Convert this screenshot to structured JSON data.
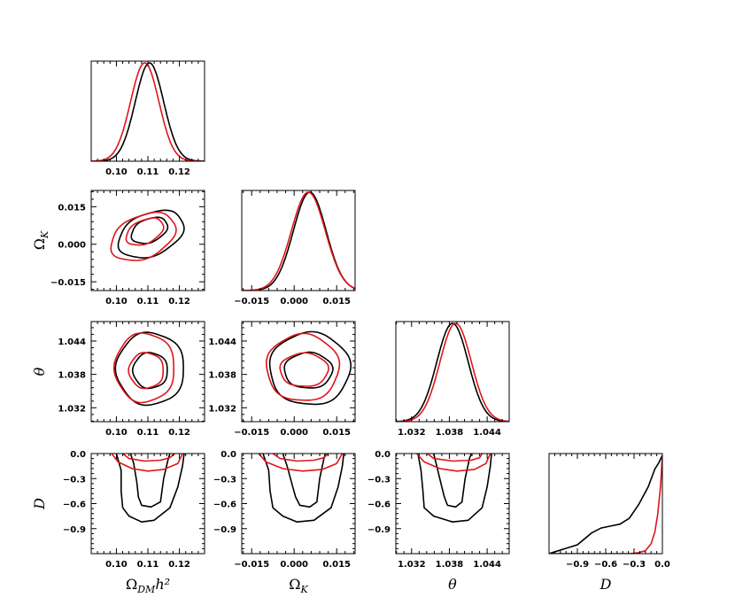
{
  "chart_data": {
    "type": "triangle-plot",
    "parameters": [
      {
        "key": "omdm",
        "label": "Ω_DMh²",
        "range": [
          0.092,
          0.128
        ],
        "ticks": [
          {
            "v": 0.1,
            "t": "0.10"
          },
          {
            "v": 0.11,
            "t": "0.11"
          },
          {
            "v": 0.12,
            "t": "0.12"
          }
        ]
      },
      {
        "key": "omk",
        "label": "Ω_K",
        "range": [
          -0.0185,
          0.0215
        ],
        "ticks": [
          {
            "v": -0.015,
            "t": "−0.015"
          },
          {
            "v": 0.0,
            "t": "0.000"
          },
          {
            "v": 0.015,
            "t": "0.015"
          }
        ]
      },
      {
        "key": "theta",
        "label": "θ",
        "range": [
          1.0295,
          1.0475
        ],
        "ticks": [
          {
            "v": 1.032,
            "t": "1.032"
          },
          {
            "v": 1.038,
            "t": "1.038"
          },
          {
            "v": 1.044,
            "t": "1.044"
          }
        ]
      },
      {
        "key": "D",
        "label": "D",
        "range": [
          -1.2,
          0.0
        ],
        "ticks": [
          {
            "v": -0.9,
            "t": "−0.9"
          },
          {
            "v": -0.6,
            "t": "−0.6"
          },
          {
            "v": -0.3,
            "t": "−0.3"
          },
          {
            "v": 0.0,
            "t": "0.0"
          }
        ]
      }
    ],
    "axis_labels": {
      "x": [
        "Ω",
        "Ω",
        "θ",
        "D"
      ],
      "x_sub": [
        "DM",
        "K",
        "",
        ""
      ],
      "x_suffix": [
        "h²",
        "",
        "",
        ""
      ],
      "y": [
        "Ω",
        "θ",
        "D"
      ],
      "y_sub": [
        "K",
        "",
        ""
      ]
    },
    "series": [
      {
        "name": "black",
        "color": "#000000"
      },
      {
        "name": "red",
        "color": "#e0141c"
      }
    ],
    "marginals": [
      {
        "param": "omdm",
        "black": {
          "mean": 0.1105,
          "sd": 0.0045
        },
        "red": {
          "mean": 0.109,
          "sd": 0.0045
        }
      },
      {
        "param": "omk",
        "black": {
          "mean": 0.0055,
          "sd": 0.0058
        },
        "red": {
          "mean": 0.005,
          "sd": 0.006
        }
      },
      {
        "param": "theta",
        "black": {
          "mean": 1.0385,
          "sd": 0.0025
        },
        "red": {
          "mean": 1.039,
          "sd": 0.0025
        }
      },
      {
        "param": "D",
        "black": [
          [
            -1.2,
            0.0
          ],
          [
            -0.9,
            0.09
          ],
          [
            -0.75,
            0.21
          ],
          [
            -0.65,
            0.26
          ],
          [
            -0.55,
            0.28
          ],
          [
            -0.45,
            0.3
          ],
          [
            -0.35,
            0.36
          ],
          [
            -0.25,
            0.5
          ],
          [
            -0.15,
            0.68
          ],
          [
            -0.08,
            0.86
          ],
          [
            -0.04,
            0.92
          ],
          [
            0.0,
            1.0
          ]
        ],
        "red": [
          [
            -1.2,
            0.0
          ],
          [
            -0.35,
            0.0
          ],
          [
            -0.25,
            0.01
          ],
          [
            -0.18,
            0.03
          ],
          [
            -0.12,
            0.1
          ],
          [
            -0.08,
            0.22
          ],
          [
            -0.05,
            0.4
          ],
          [
            -0.02,
            0.68
          ],
          [
            0.0,
            1.0
          ]
        ]
      }
    ],
    "contours": [
      {
        "x": "omdm",
        "y": "omk",
        "black": [
          {
            "cx": 0.1105,
            "cy": 0.0055,
            "rx": 0.0062,
            "ry": 0.0045,
            "rot": 30
          },
          {
            "cx": 0.111,
            "cy": 0.004,
            "rx": 0.0112,
            "ry": 0.0082,
            "rot": 30
          }
        ],
        "red": [
          {
            "cx": 0.109,
            "cy": 0.005,
            "rx": 0.0065,
            "ry": 0.0045,
            "rot": 32
          },
          {
            "cx": 0.1085,
            "cy": 0.003,
            "rx": 0.0112,
            "ry": 0.0082,
            "rot": 32
          }
        ]
      },
      {
        "x": "omdm",
        "y": "theta",
        "black": [
          {
            "cx": 0.1108,
            "cy": 1.0387,
            "rx": 0.0055,
            "ry": 0.0032,
            "rot": 0
          },
          {
            "cx": 0.1108,
            "cy": 1.039,
            "rx": 0.0108,
            "ry": 0.0065,
            "rot": 0
          }
        ],
        "red": [
          {
            "cx": 0.1095,
            "cy": 1.0387,
            "rx": 0.0055,
            "ry": 0.0032,
            "rot": 0
          },
          {
            "cx": 0.109,
            "cy": 1.0392,
            "rx": 0.0095,
            "ry": 0.0062,
            "rot": 0
          }
        ]
      },
      {
        "x": "omk",
        "y": "theta",
        "black": [
          {
            "cx": 0.005,
            "cy": 1.0387,
            "rx": 0.0085,
            "ry": 0.0032,
            "rot": 0
          },
          {
            "cx": 0.0055,
            "cy": 1.039,
            "rx": 0.0142,
            "ry": 0.0065,
            "rot": 0
          }
        ],
        "red": [
          {
            "cx": 0.0035,
            "cy": 1.0388,
            "rx": 0.0085,
            "ry": 0.003,
            "rot": 0
          },
          {
            "cx": 0.003,
            "cy": 1.0392,
            "rx": 0.0128,
            "ry": 0.006,
            "rot": 0
          }
        ]
      },
      {
        "x": "omdm",
        "y": "D",
        "black_inner": [
          [
            0.1045,
            0.0
          ],
          [
            0.1055,
            -0.12
          ],
          [
            0.1065,
            -0.35
          ],
          [
            0.107,
            -0.52
          ],
          [
            0.108,
            -0.62
          ],
          [
            0.111,
            -0.64
          ],
          [
            0.114,
            -0.58
          ],
          [
            0.115,
            -0.3
          ],
          [
            0.1165,
            -0.06
          ],
          [
            0.117,
            0.0
          ]
        ],
        "black_outer": [
          [
            0.1,
            0.0
          ],
          [
            0.1015,
            -0.2
          ],
          [
            0.1015,
            -0.45
          ],
          [
            0.102,
            -0.65
          ],
          [
            0.104,
            -0.75
          ],
          [
            0.108,
            -0.82
          ],
          [
            0.112,
            -0.8
          ],
          [
            0.117,
            -0.65
          ],
          [
            0.1195,
            -0.4
          ],
          [
            0.121,
            -0.15
          ],
          [
            0.1215,
            0.0
          ]
        ],
        "red_inner": [
          [
            0.102,
            0.0
          ],
          [
            0.104,
            -0.06
          ],
          [
            0.109,
            -0.09
          ],
          [
            0.114,
            -0.08
          ],
          [
            0.117,
            -0.05
          ],
          [
            0.1185,
            0.0
          ]
        ],
        "red_outer": [
          [
            0.0985,
            0.0
          ],
          [
            0.1005,
            -0.1
          ],
          [
            0.105,
            -0.18
          ],
          [
            0.11,
            -0.21
          ],
          [
            0.115,
            -0.19
          ],
          [
            0.1195,
            -0.12
          ],
          [
            0.121,
            0.0
          ]
        ]
      },
      {
        "x": "omk",
        "y": "D",
        "black_inner": [
          [
            -0.004,
            0.0
          ],
          [
            -0.0025,
            -0.15
          ],
          [
            -0.0005,
            -0.4
          ],
          [
            0.0005,
            -0.52
          ],
          [
            0.002,
            -0.62
          ],
          [
            0.0055,
            -0.64
          ],
          [
            0.008,
            -0.58
          ],
          [
            0.009,
            -0.3
          ],
          [
            0.0105,
            -0.06
          ],
          [
            0.011,
            0.0
          ]
        ],
        "black_outer": [
          [
            -0.011,
            0.0
          ],
          [
            -0.009,
            -0.2
          ],
          [
            -0.0085,
            -0.45
          ],
          [
            -0.0075,
            -0.65
          ],
          [
            -0.004,
            -0.75
          ],
          [
            0.001,
            -0.82
          ],
          [
            0.007,
            -0.8
          ],
          [
            0.013,
            -0.65
          ],
          [
            0.0155,
            -0.4
          ],
          [
            0.017,
            -0.15
          ],
          [
            0.0175,
            0.0
          ]
        ],
        "red_inner": [
          [
            -0.0075,
            0.0
          ],
          [
            -0.005,
            -0.06
          ],
          [
            0.001,
            -0.09
          ],
          [
            0.007,
            -0.08
          ],
          [
            0.0105,
            -0.05
          ],
          [
            0.012,
            0.0
          ]
        ],
        "red_outer": [
          [
            -0.0125,
            0.0
          ],
          [
            -0.01,
            -0.1
          ],
          [
            -0.004,
            -0.18
          ],
          [
            0.003,
            -0.21
          ],
          [
            0.01,
            -0.19
          ],
          [
            0.015,
            -0.12
          ],
          [
            0.017,
            0.0
          ]
        ]
      },
      {
        "x": "theta",
        "y": "D",
        "black_inner": [
          [
            1.0355,
            0.0
          ],
          [
            1.036,
            -0.15
          ],
          [
            1.0368,
            -0.4
          ],
          [
            1.0372,
            -0.52
          ],
          [
            1.0377,
            -0.62
          ],
          [
            1.039,
            -0.64
          ],
          [
            1.04,
            -0.58
          ],
          [
            1.0405,
            -0.3
          ],
          [
            1.0412,
            -0.06
          ],
          [
            1.0415,
            0.0
          ]
        ],
        "black_outer": [
          [
            1.033,
            0.0
          ],
          [
            1.0335,
            -0.2
          ],
          [
            1.0338,
            -0.45
          ],
          [
            1.034,
            -0.65
          ],
          [
            1.0355,
            -0.75
          ],
          [
            1.0385,
            -0.82
          ],
          [
            1.041,
            -0.8
          ],
          [
            1.0432,
            -0.65
          ],
          [
            1.044,
            -0.4
          ],
          [
            1.0445,
            -0.15
          ],
          [
            1.0447,
            0.0
          ]
        ],
        "red_inner": [
          [
            1.0345,
            0.0
          ],
          [
            1.0355,
            -0.06
          ],
          [
            1.0385,
            -0.09
          ],
          [
            1.0415,
            -0.08
          ],
          [
            1.0428,
            -0.05
          ],
          [
            1.0432,
            0.0
          ]
        ],
        "red_outer": [
          [
            1.0328,
            0.0
          ],
          [
            1.034,
            -0.1
          ],
          [
            1.0365,
            -0.18
          ],
          [
            1.0392,
            -0.21
          ],
          [
            1.042,
            -0.19
          ],
          [
            1.0438,
            -0.12
          ],
          [
            1.0445,
            0.0
          ]
        ]
      }
    ]
  }
}
